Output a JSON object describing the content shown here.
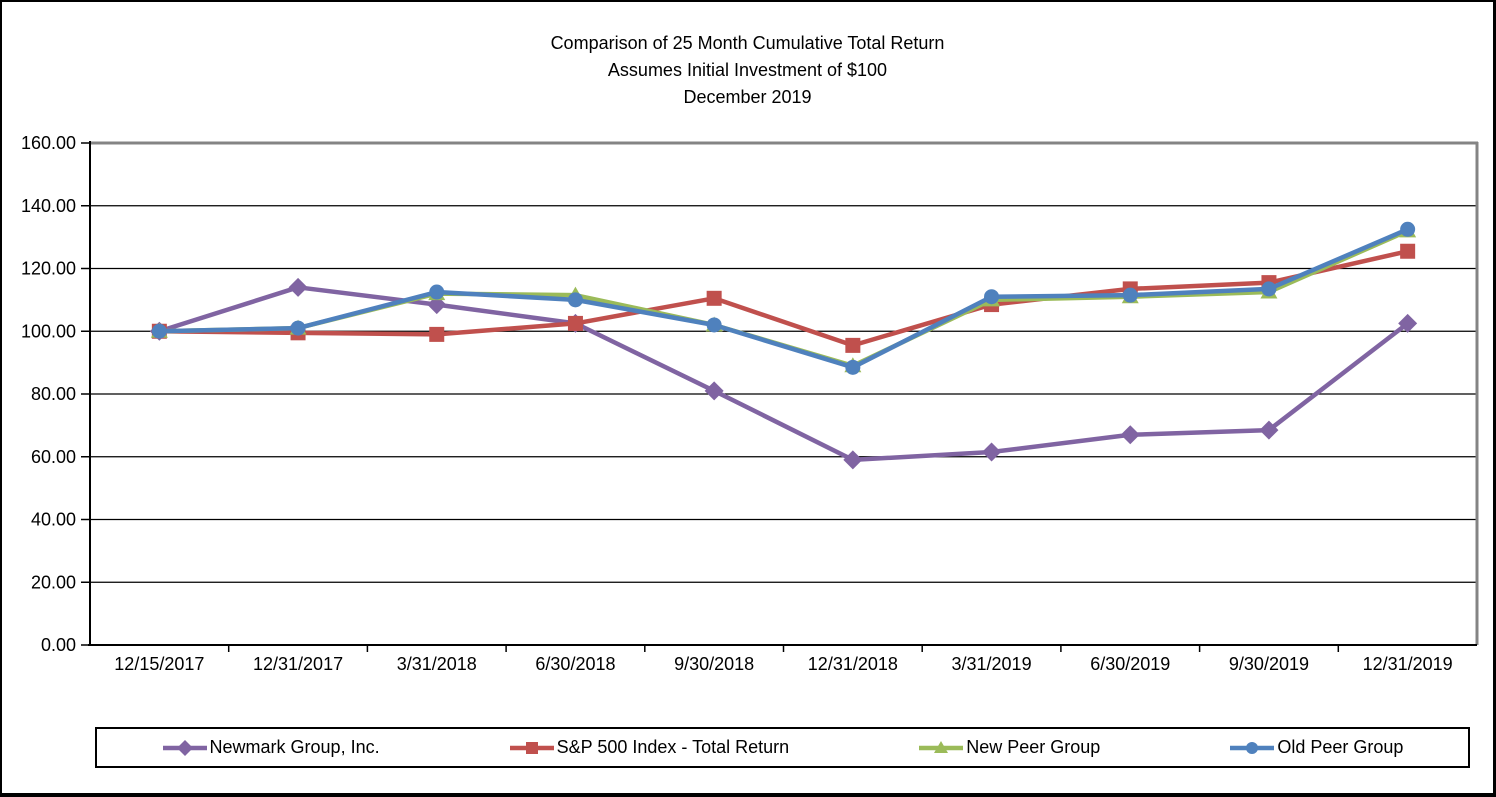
{
  "title": {
    "line1": "Comparison of 25 Month Cumulative Total Return",
    "line2": "Assumes Initial Investment of $100",
    "line3": "December 2019"
  },
  "chart_data": {
    "type": "line",
    "title": "Comparison of 25 Month Cumulative Total Return",
    "subtitle": "Assumes Initial Investment of $100",
    "subtitle2": "December 2019",
    "categories": [
      "12/15/2017",
      "12/31/2017",
      "3/31/2018",
      "6/30/2018",
      "9/30/2018",
      "12/31/2018",
      "3/31/2019",
      "6/30/2019",
      "9/30/2019",
      "12/31/2019"
    ],
    "series": [
      {
        "name": "Newmark Group, Inc.",
        "color": "#8064A2",
        "marker": "diamond",
        "values": [
          100,
          114,
          108.5,
          102.5,
          81,
          59,
          61.5,
          67,
          68.5,
          102.5
        ]
      },
      {
        "name": "S&P 500 Index - Total Return",
        "color": "#C0504D",
        "marker": "square",
        "values": [
          100,
          99.5,
          99,
          102.5,
          110.5,
          95.5,
          108.5,
          113.5,
          115.5,
          125.5
        ]
      },
      {
        "name": "New Peer Group",
        "color": "#9BBB59",
        "marker": "triangle",
        "values": [
          100,
          101,
          112,
          111.5,
          102,
          89,
          110,
          111,
          112.5,
          132
        ]
      },
      {
        "name": "Old Peer Group",
        "color": "#4F81BD",
        "marker": "circle",
        "values": [
          100,
          101,
          112.5,
          110,
          102,
          88.5,
          111,
          111.5,
          113.5,
          132.5
        ]
      }
    ],
    "ylim": [
      0,
      160
    ],
    "ytick_step": 20,
    "ytick_decimals": 2,
    "grid": true,
    "grid_color": "#000000",
    "axis_color": "#000000",
    "plot_border_color": "#848484",
    "legend_position": "bottom"
  }
}
